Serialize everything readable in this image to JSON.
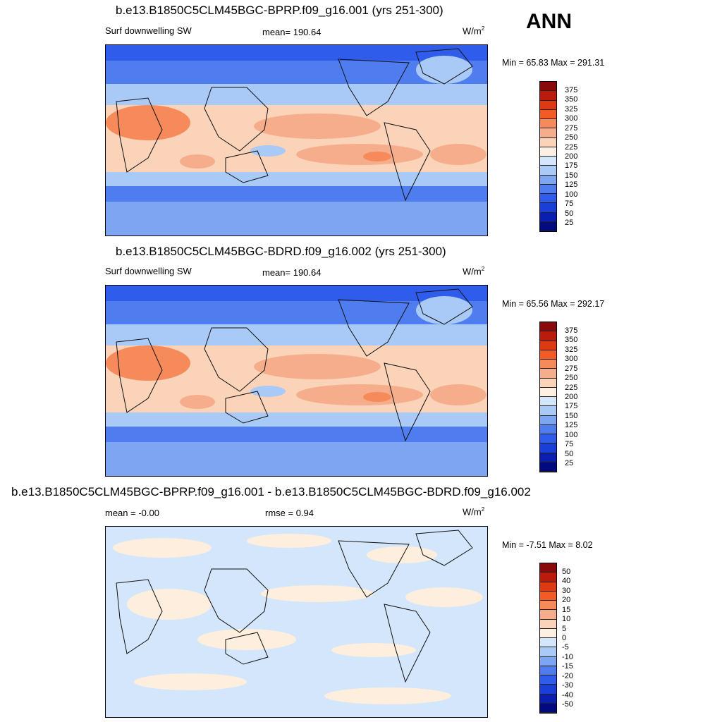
{
  "season": "ANN",
  "panels": [
    {
      "title": "b.e13.B1850C5CLM45BGC-BPRP.f09_g16.001 (yrs 251-300)",
      "left_label": "Surf downwelling SW",
      "center_label": "mean= 190.64",
      "units": "W/m",
      "units_sup": "2",
      "minmax": "Min =  65.83 Max = 291.31",
      "colorbar": [
        "375",
        "350",
        "325",
        "300",
        "275",
        "250",
        "225",
        "200",
        "175",
        "150",
        "125",
        "100",
        "75",
        "50",
        "25"
      ]
    },
    {
      "title": "b.e13.B1850C5CLM45BGC-BDRD.f09_g16.002 (yrs 251-300)",
      "left_label": "Surf downwelling SW",
      "center_label": "mean= 190.64",
      "units": "W/m",
      "units_sup": "2",
      "minmax": "Min =  65.56 Max = 292.17",
      "colorbar": [
        "375",
        "350",
        "325",
        "300",
        "275",
        "250",
        "225",
        "200",
        "175",
        "150",
        "125",
        "100",
        "75",
        "50",
        "25"
      ]
    },
    {
      "title": "b.e13.B1850C5CLM45BGC-BPRP.f09_g16.001 - b.e13.B1850C5CLM45BGC-BDRD.f09_g16.002",
      "left_label": "mean =  -0.00",
      "center_label": "rmse =   0.94",
      "units": "W/m",
      "units_sup": "2",
      "minmax": "Min =  -7.51 Max =   8.02",
      "colorbar": [
        "50",
        "40",
        "30",
        "20",
        "15",
        "10",
        "5",
        "0",
        "-5",
        "-10",
        "-15",
        "-20",
        "-30",
        "-40",
        "-50"
      ]
    }
  ],
  "colors": {
    "abs_scale": [
      "#8a0a0a",
      "#bb1b0c",
      "#dd3a13",
      "#f45a26",
      "#f78a5a",
      "#f6ad8b",
      "#fbd3b8",
      "#fdf0e2",
      "#d4e6fb",
      "#a9c9f6",
      "#7ea5f2",
      "#4f7df0",
      "#2f5cea",
      "#1a3fd9",
      "#0a1fb0",
      "#020a80"
    ],
    "diff_scale": [
      "#8a0a0a",
      "#bb1b0c",
      "#dd3a13",
      "#f45a26",
      "#f78a5a",
      "#f6ad8b",
      "#fbd3b8",
      "#fdf0e2",
      "#d4e6fb",
      "#a9c9f6",
      "#7ea5f2",
      "#4f7df0",
      "#2f5cea",
      "#1a3fd9",
      "#0a1fb0",
      "#020a80"
    ]
  }
}
